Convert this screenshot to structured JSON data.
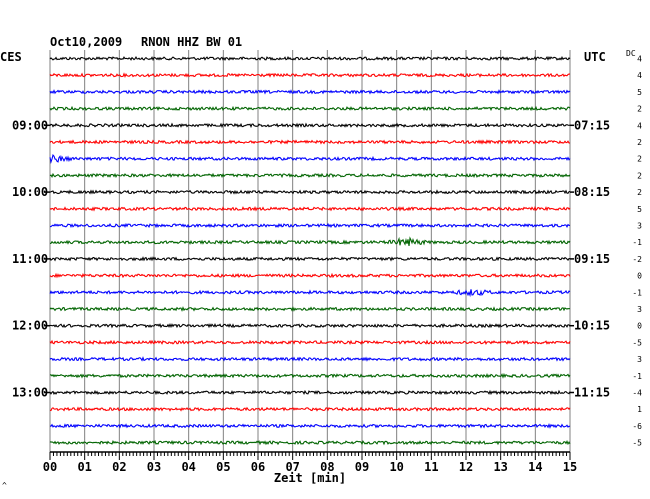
{
  "header": {
    "date": "Oct10,2009",
    "station": "RNON HHZ BW 01",
    "left_zone": "CES",
    "right_zone": "UTC",
    "dc_label": "DC"
  },
  "chart_data": {
    "type": "line",
    "title": "Oct10,2009   RNON HHZ BW 01",
    "xlabel": "Zeit [min]",
    "x_ticks": [
      "00",
      "01",
      "02",
      "03",
      "04",
      "05",
      "06",
      "07",
      "08",
      "09",
      "10",
      "11",
      "12",
      "13",
      "14",
      "15"
    ],
    "xlim": [
      0,
      15
    ],
    "grid": true,
    "rows": 24,
    "row_colors": [
      "#000000",
      "#ff0000",
      "#0000ff",
      "#006400"
    ],
    "left_time_labels": [
      {
        "row": 4,
        "text": "09:00"
      },
      {
        "row": 8,
        "text": "10:00"
      },
      {
        "row": 12,
        "text": "11:00"
      },
      {
        "row": 16,
        "text": "12:00"
      },
      {
        "row": 20,
        "text": "13:00"
      }
    ],
    "right_time_labels": [
      {
        "row": 4,
        "text": "07:15"
      },
      {
        "row": 8,
        "text": "08:15"
      },
      {
        "row": 12,
        "text": "09:15"
      },
      {
        "row": 16,
        "text": "10:15"
      },
      {
        "row": 20,
        "text": "11:15"
      }
    ],
    "dc_offsets": [
      "4",
      "4",
      "5",
      "2",
      "4",
      "2",
      "2",
      "2",
      "2",
      "5",
      "3",
      "-1",
      "-2",
      "0",
      "-1",
      "3",
      "0",
      "-5",
      "3",
      "-1",
      "-4",
      "1",
      "-6",
      "-5"
    ],
    "events": [
      {
        "row": 11,
        "minute": 10.3,
        "amplitude": 3.2
      },
      {
        "row": 14,
        "minute": 12.2,
        "amplitude": 2.2
      },
      {
        "row": 6,
        "minute": 0.1,
        "amplitude": 2.5
      }
    ]
  },
  "corner_mark": "^"
}
